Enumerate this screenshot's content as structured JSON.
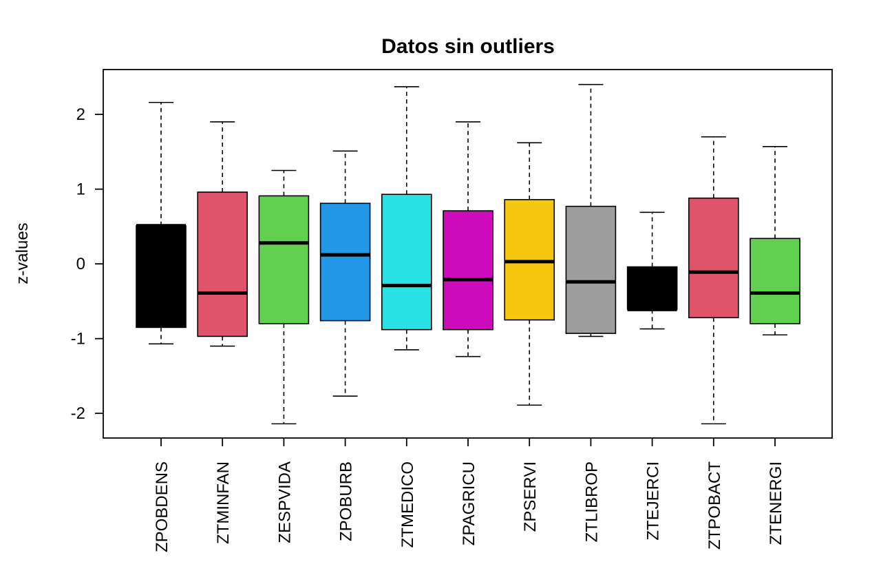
{
  "chart_data": {
    "type": "boxplot",
    "title": "Datos sin outliers",
    "xlabel": "",
    "ylabel": "z-values",
    "ylim": [
      -2.33,
      2.6
    ],
    "yticks": [
      -2,
      -1,
      0,
      1,
      2
    ],
    "ytick_labels": [
      "-2",
      "-1",
      "0",
      "1",
      "2"
    ],
    "grid": false,
    "legend": "none",
    "categories": [
      "ZPOBDENS",
      "ZTMINFAN",
      "ZESPVIDA",
      "ZPOBURB",
      "ZTMEDICO",
      "ZPAGRICU",
      "ZPSERVI",
      "ZTLIBROP",
      "ZTEJERCI",
      "ZTPOBACT",
      "ZTENERGI"
    ],
    "boxes": [
      {
        "category": "ZPOBDENS",
        "color": "#000000",
        "whisker_low": -1.07,
        "q1": -0.85,
        "median": 0.51,
        "q3": 0.51,
        "whisker_high": 2.16
      },
      {
        "category": "ZTMINFAN",
        "color": "#DF536B",
        "whisker_low": -1.1,
        "q1": -0.97,
        "median": -0.39,
        "q3": 0.96,
        "whisker_high": 1.9
      },
      {
        "category": "ZESPVIDA",
        "color": "#61D04F",
        "whisker_low": -2.14,
        "q1": -0.8,
        "median": 0.28,
        "q3": 0.91,
        "whisker_high": 1.25
      },
      {
        "category": "ZPOBURB",
        "color": "#2297E6",
        "whisker_low": -1.77,
        "q1": -0.76,
        "median": 0.12,
        "q3": 0.81,
        "whisker_high": 1.51
      },
      {
        "category": "ZTMEDICO",
        "color": "#28E2E5",
        "whisker_low": -1.15,
        "q1": -0.88,
        "median": -0.29,
        "q3": 0.93,
        "whisker_high": 2.37
      },
      {
        "category": "ZPAGRICU",
        "color": "#CD0BBC",
        "whisker_low": -1.24,
        "q1": -0.88,
        "median": -0.21,
        "q3": 0.71,
        "whisker_high": 1.9
      },
      {
        "category": "ZPSERVI",
        "color": "#F5C710",
        "whisker_low": -1.89,
        "q1": -0.75,
        "median": 0.03,
        "q3": 0.86,
        "whisker_high": 1.62
      },
      {
        "category": "ZTLIBROP",
        "color": "#9E9E9E",
        "whisker_low": -0.97,
        "q1": -0.93,
        "median": -0.24,
        "q3": 0.77,
        "whisker_high": 2.4
      },
      {
        "category": "ZTEJERCI",
        "color": "#000000",
        "whisker_low": -0.87,
        "q1": -0.61,
        "median": -0.61,
        "q3": -0.04,
        "whisker_high": 0.69
      },
      {
        "category": "ZTPOBACT",
        "color": "#DF536B",
        "whisker_low": -2.14,
        "q1": -0.72,
        "median": -0.11,
        "q3": 0.88,
        "whisker_high": 1.7
      },
      {
        "category": "ZTENERGI",
        "color": "#61D04F",
        "whisker_low": -0.95,
        "q1": -0.8,
        "median": -0.39,
        "q3": 0.34,
        "whisker_high": 1.57
      }
    ]
  }
}
